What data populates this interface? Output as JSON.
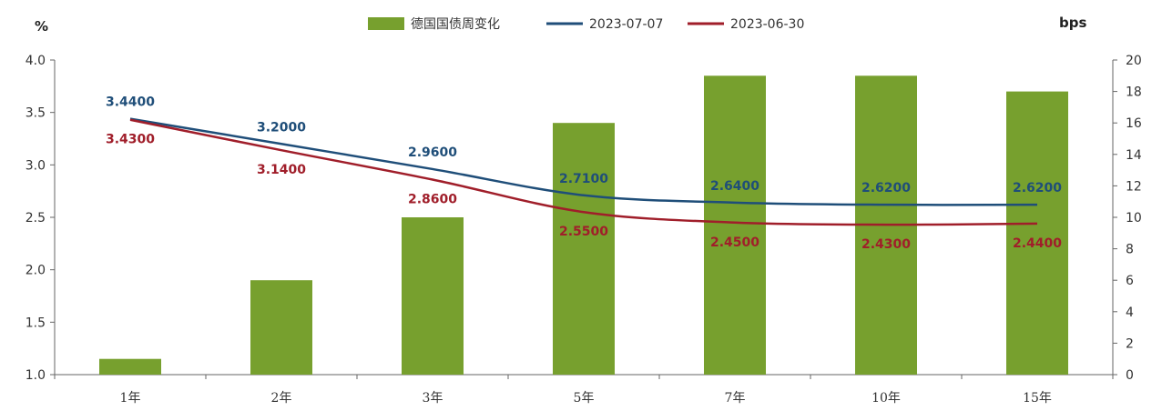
{
  "chart_data": {
    "type": "bar",
    "categories": [
      "1年",
      "2年",
      "3年",
      "5年",
      "7年",
      "10年",
      "15年"
    ],
    "left_axis": {
      "unit": "%",
      "min": 1.0,
      "max": 4.0,
      "ticks": [
        "1.0",
        "1.5",
        "2.0",
        "2.5",
        "3.0",
        "3.5",
        "4.0"
      ]
    },
    "right_axis": {
      "unit": "bps",
      "min": 0,
      "max": 20,
      "ticks": [
        "0",
        "2",
        "4",
        "6",
        "8",
        "10",
        "12",
        "14",
        "16",
        "18",
        "20"
      ]
    },
    "series": [
      {
        "name": "德国国债周变化",
        "type": "bar",
        "axis": "right",
        "color": "#77A02E",
        "values": [
          1,
          6,
          10,
          16,
          19,
          19,
          18
        ]
      },
      {
        "name": "2023-07-07",
        "type": "line",
        "axis": "left",
        "color": "#1F4E79",
        "values": [
          3.44,
          3.2,
          2.96,
          2.71,
          2.64,
          2.62,
          2.62
        ],
        "labels": [
          "3.4400",
          "3.2000",
          "2.9600",
          "2.7100",
          "2.6400",
          "2.6200",
          "2.6200"
        ]
      },
      {
        "name": "2023-06-30",
        "type": "line",
        "axis": "left",
        "color": "#A01E2A",
        "values": [
          3.43,
          3.14,
          2.86,
          2.55,
          2.45,
          2.43,
          2.44
        ],
        "labels": [
          "3.4300",
          "3.1400",
          "2.8600",
          "2.5500",
          "2.4500",
          "2.4300",
          "2.4400"
        ]
      }
    ],
    "legend_position": "top-center",
    "grid": false
  }
}
